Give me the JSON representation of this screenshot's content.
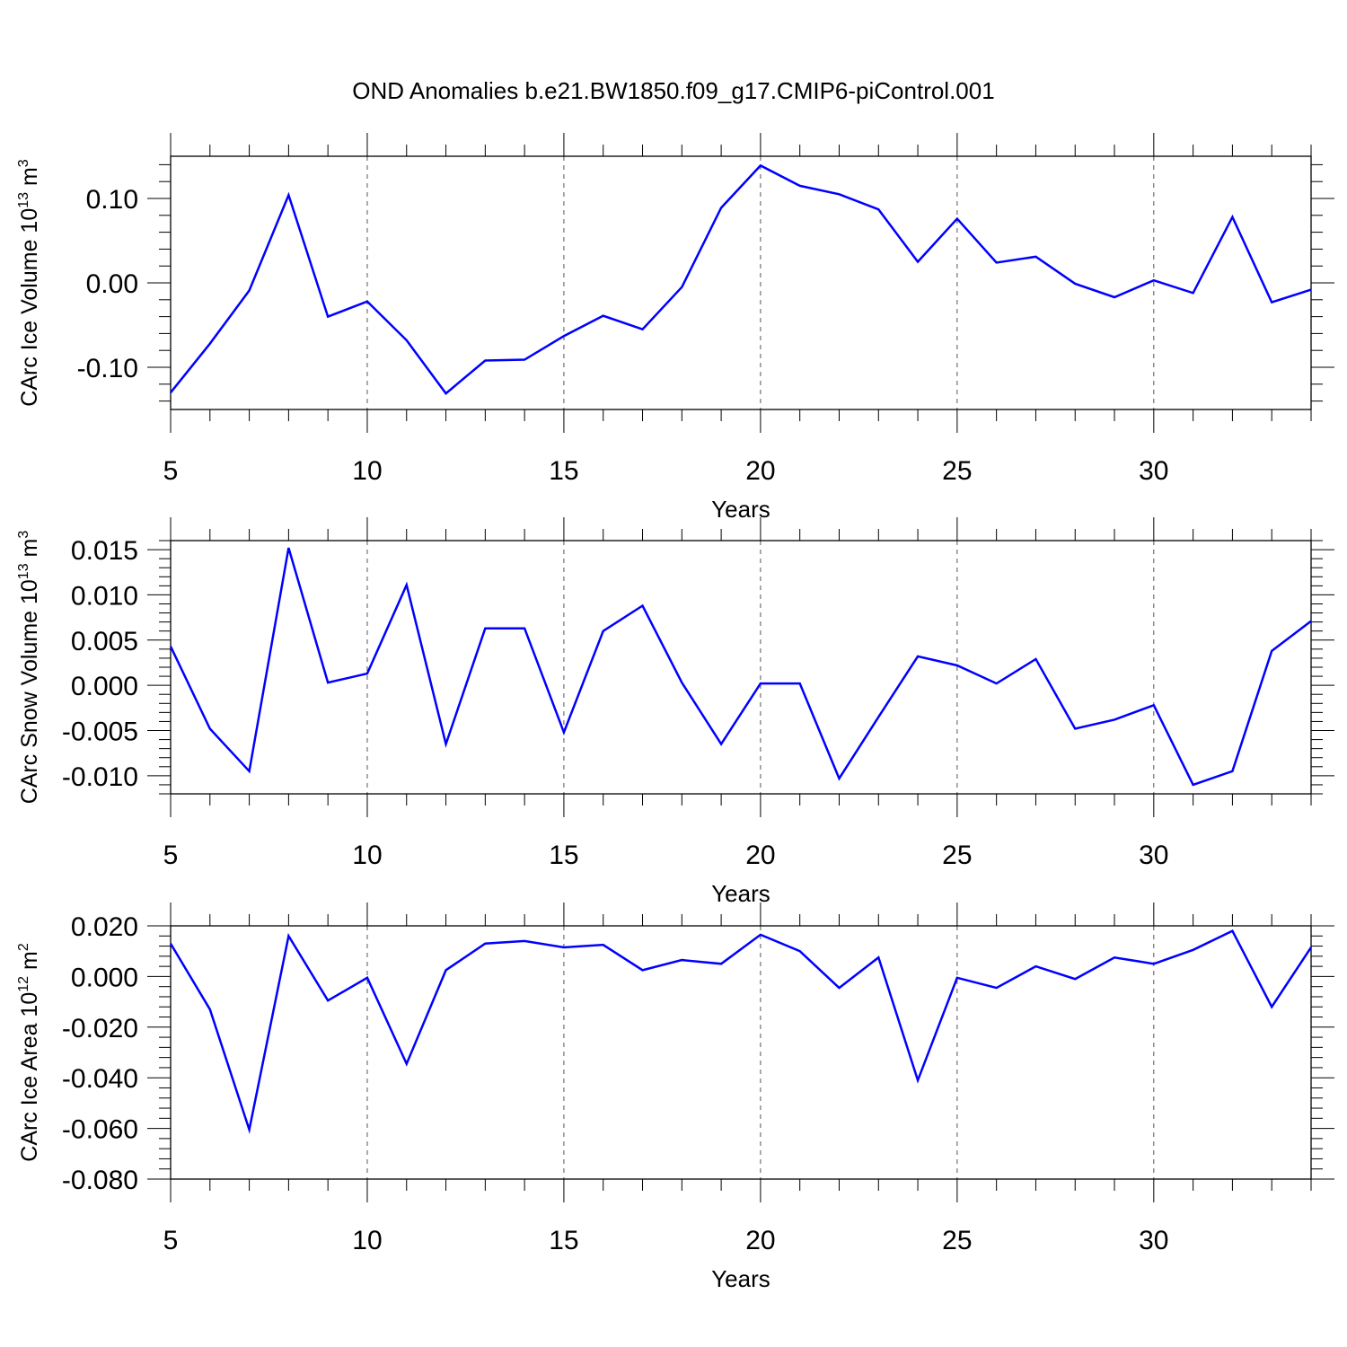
{
  "title": "OND Anomalies b.e21.BW1850.f09_g17.CMIP6-piControl.001",
  "line_color": "#0000ff",
  "chart_data": [
    {
      "type": "line",
      "ylabel": "CArc Ice Volume 10",
      "ylabel_exp": "13",
      "ylabel_unit": " m",
      "ylabel_unit_exp": "3",
      "xlabel": "Years",
      "xlim": [
        5,
        34
      ],
      "ylim": [
        -0.15,
        0.15
      ],
      "xticks": [
        5,
        10,
        15,
        20,
        25,
        30
      ],
      "xtick_labels": [
        "5",
        "10",
        "15",
        "20",
        "25",
        "30"
      ],
      "yticks": [
        -0.1,
        0.0,
        0.1
      ],
      "ytick_labels": [
        "-0.10",
        "0.00",
        "0.10"
      ],
      "x": [
        5,
        6,
        7,
        8,
        9,
        10,
        11,
        12,
        13,
        14,
        15,
        16,
        17,
        18,
        19,
        20,
        21,
        22,
        23,
        24,
        25,
        26,
        27,
        28,
        29,
        30,
        31,
        32,
        33,
        34
      ],
      "series": [
        {
          "name": "CArc Ice Volume",
          "values": [
            -0.13,
            -0.072,
            -0.009,
            0.104,
            -0.04,
            -0.022,
            -0.068,
            -0.131,
            -0.092,
            -0.091,
            -0.063,
            -0.039,
            -0.055,
            -0.005,
            0.089,
            0.139,
            0.115,
            0.105,
            0.087,
            0.025,
            0.076,
            0.024,
            0.031,
            -0.001,
            -0.017,
            0.003,
            -0.012,
            0.078,
            -0.023,
            -0.008
          ]
        }
      ]
    },
    {
      "type": "line",
      "ylabel": "CArc Snow Volume 10",
      "ylabel_exp": "13",
      "ylabel_unit": " m",
      "ylabel_unit_exp": "3",
      "xlabel": "Years",
      "xlim": [
        5,
        34
      ],
      "ylim": [
        -0.012,
        0.016
      ],
      "xticks": [
        5,
        10,
        15,
        20,
        25,
        30
      ],
      "xtick_labels": [
        "5",
        "10",
        "15",
        "20",
        "25",
        "30"
      ],
      "yticks": [
        -0.01,
        -0.005,
        0.0,
        0.005,
        0.01,
        0.015
      ],
      "ytick_labels": [
        "-0.010",
        "-0.005",
        "0.000",
        "0.005",
        "0.010",
        "0.015"
      ],
      "x": [
        5,
        6,
        7,
        8,
        9,
        10,
        11,
        12,
        13,
        14,
        15,
        16,
        17,
        18,
        19,
        20,
        21,
        22,
        23,
        24,
        25,
        26,
        27,
        28,
        29,
        30,
        31,
        32,
        33,
        34
      ],
      "series": [
        {
          "name": "CArc Snow Volume",
          "values": [
            0.0043,
            -0.0048,
            -0.0095,
            0.0152,
            0.0003,
            0.0013,
            0.0111,
            -0.0065,
            0.0063,
            0.0063,
            -0.0052,
            0.006,
            0.0088,
            0.0003,
            -0.0065,
            0.0002,
            0.0002,
            -0.0103,
            -0.0035,
            0.0032,
            0.0022,
            0.0002,
            0.0029,
            -0.0048,
            -0.0038,
            -0.0022,
            -0.011,
            -0.0095,
            0.0038,
            0.0071
          ]
        }
      ]
    },
    {
      "type": "line",
      "ylabel": "CArc Ice Area 10",
      "ylabel_exp": "12",
      "ylabel_unit": " m",
      "ylabel_unit_exp": "2",
      "xlabel": "Years",
      "xlim": [
        5,
        34
      ],
      "ylim": [
        -0.08,
        0.02
      ],
      "xticks": [
        5,
        10,
        15,
        20,
        25,
        30
      ],
      "xtick_labels": [
        "5",
        "10",
        "15",
        "20",
        "25",
        "30"
      ],
      "yticks": [
        -0.08,
        -0.06,
        -0.04,
        -0.02,
        0.0,
        0.02
      ],
      "ytick_labels": [
        "-0.080",
        "-0.060",
        "-0.040",
        "-0.020",
        "0.000",
        "0.020"
      ],
      "x": [
        5,
        6,
        7,
        8,
        9,
        10,
        11,
        12,
        13,
        14,
        15,
        16,
        17,
        18,
        19,
        20,
        21,
        22,
        23,
        24,
        25,
        26,
        27,
        28,
        29,
        30,
        31,
        32,
        33,
        34
      ],
      "series": [
        {
          "name": "CArc Ice Area",
          "values": [
            0.013,
            -0.013,
            -0.0605,
            0.016,
            -0.0095,
            -0.0005,
            -0.0345,
            0.0025,
            0.013,
            0.014,
            0.0115,
            0.0125,
            0.0025,
            0.0065,
            0.005,
            0.0165,
            0.01,
            -0.0045,
            0.0075,
            -0.041,
            -0.0005,
            -0.0045,
            0.004,
            -0.001,
            0.0075,
            0.005,
            0.0105,
            0.018,
            -0.012,
            0.0115
          ]
        }
      ]
    }
  ]
}
